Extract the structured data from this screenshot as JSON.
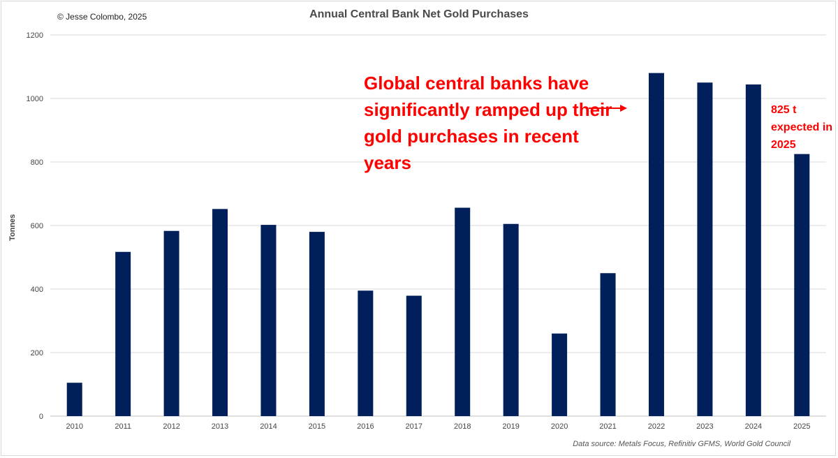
{
  "copyright": "© Jesse Colombo, 2025",
  "source": "Data source: Metals Focus, Refinitiv GFMS, World Gold Council",
  "annotation": {
    "headline": "Global central banks have significantly ramped up their gold purchases in recent years",
    "note": "825 t expected in 2025"
  },
  "colors": {
    "bar": "#001f5b",
    "annotation": "#ff0000",
    "grid": "#d9d9d9"
  },
  "chart_data": {
    "type": "bar",
    "title": "Annual Central Bank Net Gold Purchases",
    "xlabel": "",
    "ylabel": "Tonnes",
    "categories": [
      "2010",
      "2011",
      "2012",
      "2013",
      "2014",
      "2015",
      "2016",
      "2017",
      "2018",
      "2019",
      "2020",
      "2021",
      "2022",
      "2023",
      "2024",
      "2025"
    ],
    "values": [
      105,
      517,
      583,
      652,
      602,
      580,
      395,
      379,
      656,
      605,
      260,
      450,
      1080,
      1050,
      1044,
      825
    ],
    "ylim": [
      0,
      1200
    ],
    "yticks": [
      0,
      200,
      400,
      600,
      800,
      1000,
      1200
    ],
    "grid": true,
    "legend": "none"
  }
}
